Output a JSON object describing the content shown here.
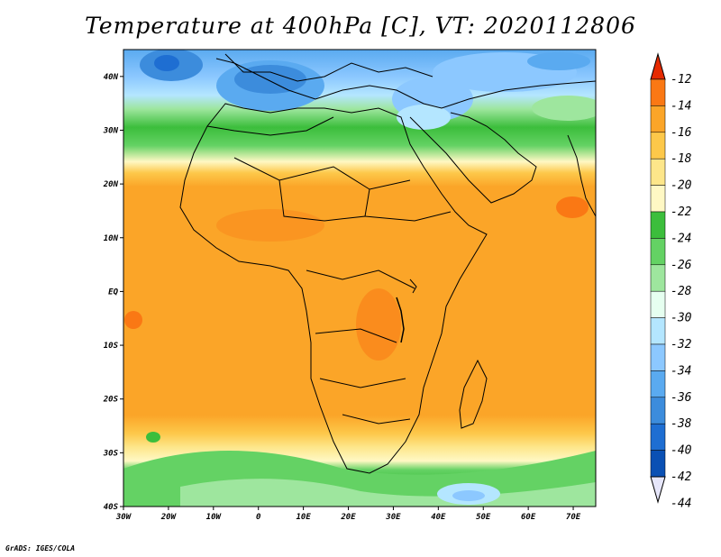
{
  "title": "Temperature at 400hPa [C], VT: 2020112806",
  "credit": "GrADS: IGES/COLA",
  "map": {
    "lon_range": [
      -30,
      75
    ],
    "lat_range": [
      -40,
      45
    ],
    "lon_ticks": [
      "30W",
      "20W",
      "10W",
      "0",
      "10E",
      "20E",
      "30E",
      "40E",
      "50E",
      "60E",
      "70E"
    ],
    "lat_ticks": [
      "40N",
      "30N",
      "20N",
      "10N",
      "EQ",
      "10S",
      "20S",
      "30S",
      "40S"
    ]
  },
  "colorbar": {
    "labels": [
      "-12",
      "-14",
      "-16",
      "-18",
      "-20",
      "-22",
      "-24",
      "-26",
      "-28",
      "-30",
      "-32",
      "-34",
      "-36",
      "-38",
      "-40",
      "-42",
      "-44"
    ],
    "colors": [
      "#f03c0a",
      "#fa7814",
      "#fba528",
      "#fdc84a",
      "#fde68a",
      "#fff8c4",
      "#3cbe3c",
      "#64d264",
      "#9ee69e",
      "#e6fff0",
      "#b4e6ff",
      "#8cc8ff",
      "#5aaaf0",
      "#3c8cdc",
      "#1e6ed2",
      "#0a50b4",
      "#141478"
    ],
    "top_arrow_color": "#e62a00",
    "bottom_arrow_color": "#e6e6fa"
  }
}
